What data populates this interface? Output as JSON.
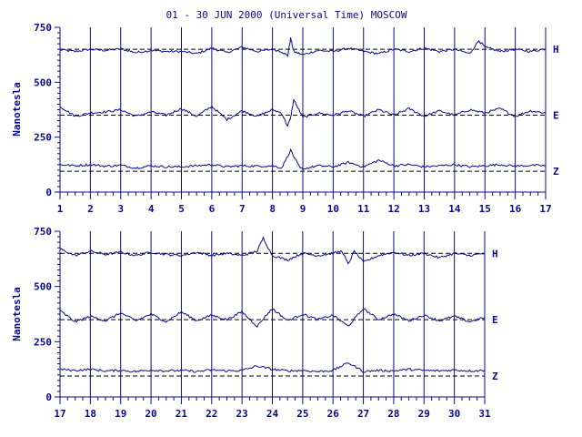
{
  "chart_data": {
    "type": "line",
    "title": "01 - 30 JUN 2000 (Universal Time) MOSCOW",
    "ylabel": "Nanotesla",
    "y_ticks": [
      "0",
      "250",
      "500",
      "750"
    ],
    "ylim": [
      0,
      750
    ],
    "line_color": "#0a0a8c",
    "components": [
      "H",
      "E",
      "Z"
    ],
    "baselines": {
      "H": 650,
      "E": 350,
      "Z": 95
    },
    "panels": [
      {
        "xlim": [
          1,
          17
        ],
        "x_ticks": [
          "1",
          "2",
          "3",
          "4",
          "5",
          "6",
          "7",
          "8",
          "9",
          "10",
          "11",
          "12",
          "13",
          "14",
          "15",
          "16",
          "17"
        ],
        "series": [
          {
            "name": "H",
            "baseline": 650,
            "points": [
              [
                1,
                648
              ],
              [
                1.5,
                640
              ],
              [
                2,
                650
              ],
              [
                2.5,
                645
              ],
              [
                3,
                652
              ],
              [
                3.5,
                635
              ],
              [
                4,
                645
              ],
              [
                4.5,
                640
              ],
              [
                5,
                640
              ],
              [
                5.5,
                630
              ],
              [
                6,
                655
              ],
              [
                6.5,
                635
              ],
              [
                7,
                660
              ],
              [
                7.5,
                640
              ],
              [
                8,
                650
              ],
              [
                8.3,
                640
              ],
              [
                8.5,
                620
              ],
              [
                8.6,
                700
              ],
              [
                8.7,
                640
              ],
              [
                9,
                625
              ],
              [
                9.5,
                645
              ],
              [
                10,
                640
              ],
              [
                10.5,
                655
              ],
              [
                11,
                640
              ],
              [
                11.5,
                630
              ],
              [
                12,
                650
              ],
              [
                12.5,
                640
              ],
              [
                13,
                655
              ],
              [
                13.5,
                640
              ],
              [
                14,
                650
              ],
              [
                14.5,
                630
              ],
              [
                14.8,
                690
              ],
              [
                15,
                660
              ],
              [
                15.5,
                640
              ],
              [
                16,
                650
              ],
              [
                16.5,
                640
              ],
              [
                17,
                652
              ]
            ]
          },
          {
            "name": "E",
            "baseline": 350,
            "points": [
              [
                1,
                390
              ],
              [
                1.5,
                345
              ],
              [
                2,
                360
              ],
              [
                2.5,
                365
              ],
              [
                3,
                375
              ],
              [
                3.5,
                345
              ],
              [
                4,
                365
              ],
              [
                4.5,
                350
              ],
              [
                5,
                380
              ],
              [
                5.5,
                345
              ],
              [
                6,
                390
              ],
              [
                6.5,
                330
              ],
              [
                7,
                370
              ],
              [
                7.5,
                345
              ],
              [
                8,
                375
              ],
              [
                8.3,
                360
              ],
              [
                8.5,
                300
              ],
              [
                8.6,
                340
              ],
              [
                8.7,
                420
              ],
              [
                9,
                340
              ],
              [
                9.5,
                360
              ],
              [
                10,
                350
              ],
              [
                10.5,
                370
              ],
              [
                11,
                345
              ],
              [
                11.5,
                375
              ],
              [
                12,
                350
              ],
              [
                12.5,
                380
              ],
              [
                13,
                345
              ],
              [
                13.5,
                370
              ],
              [
                14,
                350
              ],
              [
                14.5,
                375
              ],
              [
                15,
                360
              ],
              [
                15.5,
                380
              ],
              [
                16,
                345
              ],
              [
                16.5,
                370
              ],
              [
                17,
                360
              ]
            ]
          },
          {
            "name": "Z",
            "baseline": 95,
            "points": [
              [
                1,
                125
              ],
              [
                1.5,
                120
              ],
              [
                2,
                125
              ],
              [
                2.5,
                118
              ],
              [
                3,
                122
              ],
              [
                3.5,
                110
              ],
              [
                4,
                120
              ],
              [
                4.5,
                115
              ],
              [
                5,
                115
              ],
              [
                5.5,
                120
              ],
              [
                6,
                125
              ],
              [
                6.5,
                115
              ],
              [
                7,
                120
              ],
              [
                7.5,
                118
              ],
              [
                8,
                120
              ],
              [
                8.3,
                110
              ],
              [
                8.6,
                190
              ],
              [
                8.9,
                110
              ],
              [
                9,
                105
              ],
              [
                9.5,
                120
              ],
              [
                10,
                115
              ],
              [
                10.5,
                135
              ],
              [
                11,
                115
              ],
              [
                11.5,
                145
              ],
              [
                12,
                120
              ],
              [
                12.5,
                125
              ],
              [
                13,
                115
              ],
              [
                13.5,
                120
              ],
              [
                14,
                125
              ],
              [
                14.5,
                115
              ],
              [
                15,
                120
              ],
              [
                15.5,
                125
              ],
              [
                16,
                118
              ],
              [
                16.5,
                122
              ],
              [
                17,
                120
              ]
            ]
          }
        ]
      },
      {
        "xlim": [
          17,
          31
        ],
        "x_ticks": [
          "17",
          "18",
          "19",
          "20",
          "21",
          "22",
          "23",
          "24",
          "25",
          "26",
          "27",
          "28",
          "29",
          "30",
          "31"
        ],
        "series": [
          {
            "name": "H",
            "baseline": 650,
            "points": [
              [
                17,
                670
              ],
              [
                17.5,
                640
              ],
              [
                18,
                660
              ],
              [
                18.5,
                645
              ],
              [
                19,
                655
              ],
              [
                19.5,
                640
              ],
              [
                20,
                655
              ],
              [
                20.5,
                645
              ],
              [
                21,
                640
              ],
              [
                21.5,
                655
              ],
              [
                22,
                640
              ],
              [
                22.5,
                650
              ],
              [
                23,
                640
              ],
              [
                23.5,
                660
              ],
              [
                23.7,
                720
              ],
              [
                24,
                640
              ],
              [
                24.5,
                620
              ],
              [
                25,
                650
              ],
              [
                25.5,
                640
              ],
              [
                26,
                650
              ],
              [
                26.3,
                660
              ],
              [
                26.5,
                600
              ],
              [
                26.7,
                660
              ],
              [
                27,
                610
              ],
              [
                27.5,
                640
              ],
              [
                28,
                655
              ],
              [
                28.5,
                640
              ],
              [
                29,
                650
              ],
              [
                29.5,
                630
              ],
              [
                30,
                650
              ],
              [
                30.5,
                640
              ],
              [
                31,
                650
              ]
            ]
          },
          {
            "name": "E",
            "baseline": 350,
            "points": [
              [
                17,
                390
              ],
              [
                17.5,
                340
              ],
              [
                18,
                365
              ],
              [
                18.5,
                345
              ],
              [
                19,
                380
              ],
              [
                19.5,
                345
              ],
              [
                20,
                375
              ],
              [
                20.5,
                340
              ],
              [
                21,
                385
              ],
              [
                21.5,
                345
              ],
              [
                22,
                370
              ],
              [
                22.5,
                350
              ],
              [
                23,
                385
              ],
              [
                23.5,
                320
              ],
              [
                23.8,
                370
              ],
              [
                24,
                400
              ],
              [
                24.5,
                345
              ],
              [
                25,
                375
              ],
              [
                25.5,
                350
              ],
              [
                26,
                370
              ],
              [
                26.5,
                320
              ],
              [
                27,
                400
              ],
              [
                27.5,
                350
              ],
              [
                28,
                375
              ],
              [
                28.5,
                345
              ],
              [
                29,
                370
              ],
              [
                29.5,
                345
              ],
              [
                30,
                365
              ],
              [
                30.5,
                340
              ],
              [
                31,
                360
              ]
            ]
          },
          {
            "name": "Z",
            "baseline": 95,
            "points": [
              [
                17,
                125
              ],
              [
                17.5,
                120
              ],
              [
                18,
                125
              ],
              [
                18.5,
                118
              ],
              [
                19,
                120
              ],
              [
                19.5,
                115
              ],
              [
                20,
                122
              ],
              [
                20.5,
                118
              ],
              [
                21,
                120
              ],
              [
                21.5,
                115
              ],
              [
                22,
                122
              ],
              [
                22.5,
                118
              ],
              [
                23,
                120
              ],
              [
                23.5,
                140
              ],
              [
                24,
                125
              ],
              [
                24.5,
                118
              ],
              [
                25,
                120
              ],
              [
                25.5,
                115
              ],
              [
                26,
                120
              ],
              [
                26.5,
                155
              ],
              [
                27,
                115
              ],
              [
                27.5,
                120
              ],
              [
                28,
                118
              ],
              [
                28.5,
                125
              ],
              [
                29,
                120
              ],
              [
                29.5,
                118
              ],
              [
                30,
                122
              ],
              [
                30.5,
                118
              ],
              [
                31,
                120
              ]
            ]
          }
        ]
      }
    ]
  }
}
